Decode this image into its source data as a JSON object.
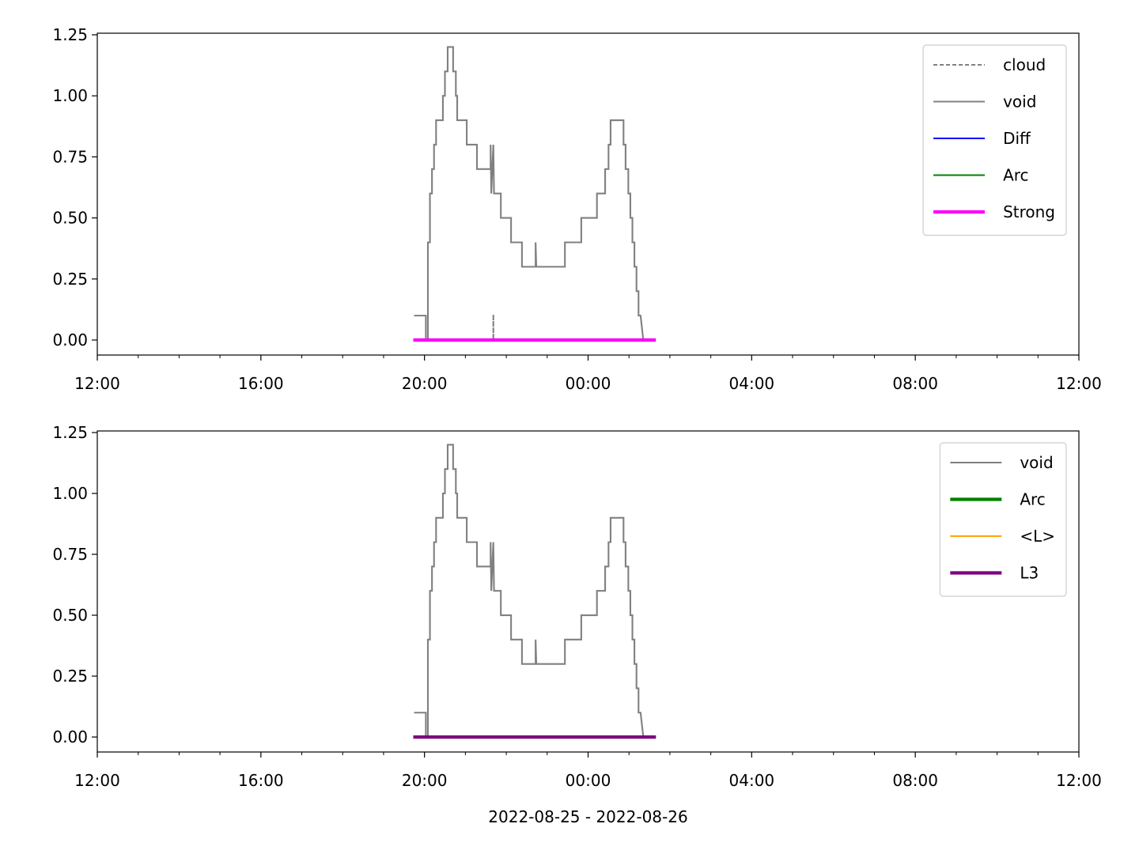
{
  "chart_data": [
    {
      "type": "line",
      "xlim": [
        "2022-08-25T12:00",
        "2022-08-26T12:00"
      ],
      "xticks": [
        {
          "value": "2022-08-25T12:00",
          "label": "12:00"
        },
        {
          "value": "2022-08-25T16:00",
          "label": "16:00"
        },
        {
          "value": "2022-08-25T20:00",
          "label": "20:00"
        },
        {
          "value": "2022-08-26T00:00",
          "label": "00:00"
        },
        {
          "value": "2022-08-26T04:00",
          "label": "04:00"
        },
        {
          "value": "2022-08-26T08:00",
          "label": "08:00"
        },
        {
          "value": "2022-08-26T12:00",
          "label": "12:00"
        }
      ],
      "xminorticks": [
        "2022-08-25T13:00",
        "2022-08-25T14:00",
        "2022-08-25T15:00",
        "2022-08-25T17:00",
        "2022-08-25T18:00",
        "2022-08-25T19:00",
        "2022-08-25T21:00",
        "2022-08-25T22:00",
        "2022-08-25T23:00",
        "2022-08-26T01:00",
        "2022-08-26T02:00",
        "2022-08-26T03:00",
        "2022-08-26T05:00",
        "2022-08-26T06:00",
        "2022-08-26T07:00",
        "2022-08-26T09:00",
        "2022-08-26T10:00",
        "2022-08-26T11:00"
      ],
      "ylim": [
        -0.0615,
        1.2565
      ],
      "yticks": [
        {
          "value": 0,
          "label": "0.00"
        },
        {
          "value": 0.25,
          "label": "0.25"
        },
        {
          "value": 0.5,
          "label": "0.50"
        },
        {
          "value": 0.75,
          "label": "0.75"
        },
        {
          "value": 1,
          "label": "1.00"
        },
        {
          "value": 1.25,
          "label": "1.25"
        }
      ],
      "legend": "upper right",
      "series": [
        {
          "name": "cloud",
          "color": "#808080",
          "dashed": true,
          "linewidth": 1.5,
          "x": [
            "2022-08-25T21:41",
            "2022-08-25T21:41"
          ],
          "values": [
            0.1,
            0
          ]
        },
        {
          "name": "void",
          "color": "#808080",
          "dashed": false,
          "linewidth": 1.5,
          "x": [
            "2022-08-25T19:46",
            "2022-08-25T20:02",
            "2022-08-25T20:02",
            "2022-08-25T20:05",
            "2022-08-25T20:05",
            "2022-08-25T20:08",
            "2022-08-25T20:08",
            "2022-08-25T20:11",
            "2022-08-25T20:11",
            "2022-08-25T20:14",
            "2022-08-25T20:14",
            "2022-08-25T20:17",
            "2022-08-25T20:17",
            "2022-08-25T20:27",
            "2022-08-25T20:27",
            "2022-08-25T20:30",
            "2022-08-25T20:30",
            "2022-08-25T20:34",
            "2022-08-25T20:34",
            "2022-08-25T20:42",
            "2022-08-25T20:42",
            "2022-08-25T20:46",
            "2022-08-25T20:46",
            "2022-08-25T20:48",
            "2022-08-25T20:48",
            "2022-08-25T21:02",
            "2022-08-25T21:02",
            "2022-08-25T21:17",
            "2022-08-25T21:17",
            "2022-08-25T21:37",
            "2022-08-25T21:37",
            "2022-08-25T21:38",
            "2022-08-25T21:41",
            "2022-08-25T21:42",
            "2022-08-25T21:52",
            "2022-08-25T21:52",
            "2022-08-25T22:07",
            "2022-08-25T22:07",
            "2022-08-25T22:23",
            "2022-08-25T22:23",
            "2022-08-25T22:43",
            "2022-08-25T22:43",
            "2022-08-25T22:44",
            "2022-08-25T23:26",
            "2022-08-25T23:26",
            "2022-08-25T23:50",
            "2022-08-25T23:50",
            "2022-08-26T00:13",
            "2022-08-26T00:13",
            "2022-08-26T00:25",
            "2022-08-26T00:25",
            "2022-08-26T00:30",
            "2022-08-26T00:30",
            "2022-08-26T00:33",
            "2022-08-26T00:33",
            "2022-08-26T00:52",
            "2022-08-26T00:52",
            "2022-08-26T00:55",
            "2022-08-26T00:55",
            "2022-08-26T00:59",
            "2022-08-26T00:59",
            "2022-08-26T01:02",
            "2022-08-26T01:02",
            "2022-08-26T01:05",
            "2022-08-26T01:05",
            "2022-08-26T01:08",
            "2022-08-26T01:08",
            "2022-08-26T01:11",
            "2022-08-26T01:11",
            "2022-08-26T01:14",
            "2022-08-26T01:14",
            "2022-08-26T01:17",
            "2022-08-26T01:21"
          ],
          "values": [
            0.1,
            0.1,
            0,
            0,
            0.4,
            0.4,
            0.6,
            0.6,
            0.7,
            0.7,
            0.8,
            0.8,
            0.9,
            0.9,
            1.0,
            1.0,
            1.1,
            1.1,
            1.2,
            1.2,
            1.1,
            1.1,
            1.0,
            1.0,
            0.9,
            0.9,
            0.8,
            0.8,
            0.7,
            0.7,
            0.8,
            0.6,
            0.8,
            0.6,
            0.6,
            0.5,
            0.5,
            0.4,
            0.4,
            0.3,
            0.3,
            0.4,
            0.3,
            0.3,
            0.4,
            0.4,
            0.5,
            0.5,
            0.6,
            0.6,
            0.7,
            0.7,
            0.8,
            0.8,
            0.9,
            0.9,
            0.8,
            0.8,
            0.7,
            0.7,
            0.6,
            0.6,
            0.5,
            0.5,
            0.4,
            0.4,
            0.3,
            0.3,
            0.2,
            0.2,
            0.1,
            0.1,
            0
          ]
        },
        {
          "name": "Diff",
          "color": "#0000ff",
          "dashed": false,
          "linewidth": 1.5,
          "x": [
            "2022-08-25T19:46",
            "2022-08-26T01:37"
          ],
          "values": [
            0,
            0
          ]
        },
        {
          "name": "Arc",
          "color": "#008000",
          "dashed": false,
          "linewidth": 1.5,
          "x": [
            "2022-08-25T19:46",
            "2022-08-26T01:37"
          ],
          "values": [
            0,
            0
          ]
        },
        {
          "name": "Strong",
          "color": "#ff00ff",
          "dashed": false,
          "linewidth": 3,
          "x": [
            "2022-08-25T19:46",
            "2022-08-26T01:37"
          ],
          "values": [
            0,
            0
          ]
        }
      ]
    },
    {
      "type": "line",
      "xlabel": "2022-08-25 - 2022-08-26",
      "xlim": [
        "2022-08-25T12:00",
        "2022-08-26T12:00"
      ],
      "xticks": [
        {
          "value": "2022-08-25T12:00",
          "label": "12:00"
        },
        {
          "value": "2022-08-25T16:00",
          "label": "16:00"
        },
        {
          "value": "2022-08-25T20:00",
          "label": "20:00"
        },
        {
          "value": "2022-08-26T00:00",
          "label": "00:00"
        },
        {
          "value": "2022-08-26T04:00",
          "label": "04:00"
        },
        {
          "value": "2022-08-26T08:00",
          "label": "08:00"
        },
        {
          "value": "2022-08-26T12:00",
          "label": "12:00"
        }
      ],
      "xminorticks": [
        "2022-08-25T13:00",
        "2022-08-25T14:00",
        "2022-08-25T15:00",
        "2022-08-25T17:00",
        "2022-08-25T18:00",
        "2022-08-25T19:00",
        "2022-08-25T21:00",
        "2022-08-25T22:00",
        "2022-08-25T23:00",
        "2022-08-26T01:00",
        "2022-08-26T02:00",
        "2022-08-26T03:00",
        "2022-08-26T05:00",
        "2022-08-26T06:00",
        "2022-08-26T07:00",
        "2022-08-26T09:00",
        "2022-08-26T10:00",
        "2022-08-26T11:00"
      ],
      "ylim": [
        -0.0615,
        1.2565
      ],
      "yticks": [
        {
          "value": 0,
          "label": "0.00"
        },
        {
          "value": 0.25,
          "label": "0.25"
        },
        {
          "value": 0.5,
          "label": "0.50"
        },
        {
          "value": 0.75,
          "label": "0.75"
        },
        {
          "value": 1,
          "label": "1.00"
        },
        {
          "value": 1.25,
          "label": "1.25"
        }
      ],
      "legend": "upper right",
      "series": [
        {
          "name": "void",
          "color": "#808080",
          "dashed": false,
          "linewidth": 1.5,
          "x": [
            "2022-08-25T19:46",
            "2022-08-25T20:02",
            "2022-08-25T20:02",
            "2022-08-25T20:05",
            "2022-08-25T20:05",
            "2022-08-25T20:08",
            "2022-08-25T20:08",
            "2022-08-25T20:11",
            "2022-08-25T20:11",
            "2022-08-25T20:14",
            "2022-08-25T20:14",
            "2022-08-25T20:17",
            "2022-08-25T20:17",
            "2022-08-25T20:27",
            "2022-08-25T20:27",
            "2022-08-25T20:30",
            "2022-08-25T20:30",
            "2022-08-25T20:34",
            "2022-08-25T20:34",
            "2022-08-25T20:42",
            "2022-08-25T20:42",
            "2022-08-25T20:46",
            "2022-08-25T20:46",
            "2022-08-25T20:48",
            "2022-08-25T20:48",
            "2022-08-25T21:02",
            "2022-08-25T21:02",
            "2022-08-25T21:17",
            "2022-08-25T21:17",
            "2022-08-25T21:37",
            "2022-08-25T21:37",
            "2022-08-25T21:38",
            "2022-08-25T21:41",
            "2022-08-25T21:42",
            "2022-08-25T21:52",
            "2022-08-25T21:52",
            "2022-08-25T22:07",
            "2022-08-25T22:07",
            "2022-08-25T22:23",
            "2022-08-25T22:23",
            "2022-08-25T22:43",
            "2022-08-25T22:43",
            "2022-08-25T22:44",
            "2022-08-25T23:26",
            "2022-08-25T23:26",
            "2022-08-25T23:50",
            "2022-08-25T23:50",
            "2022-08-26T00:13",
            "2022-08-26T00:13",
            "2022-08-26T00:25",
            "2022-08-26T00:25",
            "2022-08-26T00:30",
            "2022-08-26T00:30",
            "2022-08-26T00:33",
            "2022-08-26T00:33",
            "2022-08-26T00:52",
            "2022-08-26T00:52",
            "2022-08-26T00:55",
            "2022-08-26T00:55",
            "2022-08-26T00:59",
            "2022-08-26T00:59",
            "2022-08-26T01:02",
            "2022-08-26T01:02",
            "2022-08-26T01:05",
            "2022-08-26T01:05",
            "2022-08-26T01:08",
            "2022-08-26T01:08",
            "2022-08-26T01:11",
            "2022-08-26T01:11",
            "2022-08-26T01:14",
            "2022-08-26T01:14",
            "2022-08-26T01:17",
            "2022-08-26T01:21"
          ],
          "values": [
            0.1,
            0.1,
            0,
            0,
            0.4,
            0.4,
            0.6,
            0.6,
            0.7,
            0.7,
            0.8,
            0.8,
            0.9,
            0.9,
            1.0,
            1.0,
            1.1,
            1.1,
            1.2,
            1.2,
            1.1,
            1.1,
            1.0,
            1.0,
            0.9,
            0.9,
            0.8,
            0.8,
            0.7,
            0.7,
            0.8,
            0.6,
            0.8,
            0.6,
            0.6,
            0.5,
            0.5,
            0.4,
            0.4,
            0.3,
            0.3,
            0.4,
            0.3,
            0.3,
            0.4,
            0.4,
            0.5,
            0.5,
            0.6,
            0.6,
            0.7,
            0.7,
            0.8,
            0.8,
            0.9,
            0.9,
            0.8,
            0.8,
            0.7,
            0.7,
            0.6,
            0.6,
            0.5,
            0.5,
            0.4,
            0.4,
            0.3,
            0.3,
            0.2,
            0.2,
            0.1,
            0.1,
            0
          ]
        },
        {
          "name": "Arc",
          "color": "#008000",
          "dashed": false,
          "linewidth": 3,
          "x": [
            "2022-08-25T19:46",
            "2022-08-26T01:37"
          ],
          "values": [
            0,
            0
          ]
        },
        {
          "name": "<L>",
          "color": "#ffa500",
          "dashed": false,
          "linewidth": 1.5,
          "x": [
            "2022-08-25T19:46",
            "2022-08-26T01:37"
          ],
          "values": [
            0,
            0
          ]
        },
        {
          "name": "L3",
          "color": "#800080",
          "dashed": false,
          "linewidth": 3,
          "x": [
            "2022-08-25T19:46",
            "2022-08-26T01:37"
          ],
          "values": [
            0,
            0
          ]
        }
      ]
    }
  ]
}
